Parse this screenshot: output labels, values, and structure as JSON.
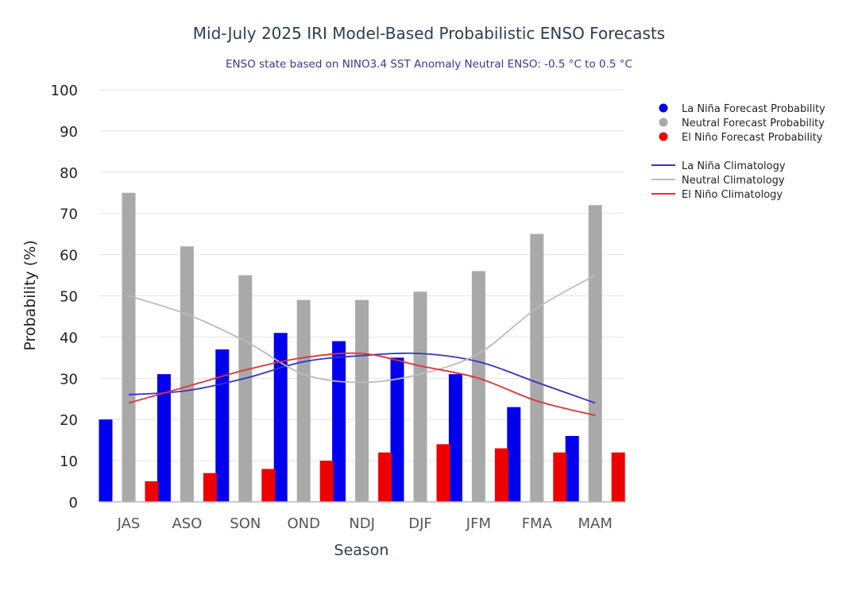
{
  "chart_data": {
    "type": "bar",
    "title": "Mid-July 2025 IRI Model-Based Probabilistic ENSO Forecasts",
    "subtitle": "ENSO state based on NINO3.4 SST Anomaly Neutral ENSO: -0.5 °C to 0.5 °C",
    "xlabel": "Season",
    "ylabel": "Probability (%)",
    "ylim": [
      0,
      100
    ],
    "yticks": [
      "0",
      "10",
      "20",
      "30",
      "40",
      "50",
      "60",
      "70",
      "80",
      "90",
      "100"
    ],
    "grid": true,
    "legend_position": "right",
    "categories": [
      "JAS",
      "ASO",
      "SON",
      "OND",
      "NDJ",
      "DJF",
      "JFM",
      "FMA",
      "MAM"
    ],
    "series": [
      {
        "name": "La Niña Forecast Probability",
        "kind": "bar",
        "color": "#0000ee",
        "values": [
          20,
          31,
          37,
          41,
          39,
          35,
          31,
          23,
          16
        ]
      },
      {
        "name": "Neutral Forecast Probability",
        "kind": "bar",
        "color": "#a9a9a9",
        "values": [
          75,
          62,
          55,
          49,
          49,
          51,
          56,
          65,
          72
        ]
      },
      {
        "name": "El Niño Forecast Probability",
        "kind": "bar",
        "color": "#ee0000",
        "values": [
          5,
          7,
          8,
          10,
          12,
          14,
          13,
          12,
          12
        ]
      }
    ],
    "climatology": [
      {
        "name": "La Niña Climatology",
        "kind": "line",
        "color": "#3333cc",
        "values": [
          26,
          27,
          30,
          34,
          35.5,
          36,
          34,
          29,
          24
        ]
      },
      {
        "name": "Neutral Climatology",
        "kind": "line",
        "color": "#bbbbbb",
        "values": [
          50,
          45.5,
          39,
          31,
          29,
          31,
          36,
          47,
          55
        ]
      },
      {
        "name": "El Niño Climatology",
        "kind": "line",
        "color": "#dd3333",
        "values": [
          24,
          28,
          32,
          35,
          36,
          33,
          30,
          24.5,
          21
        ]
      }
    ]
  }
}
